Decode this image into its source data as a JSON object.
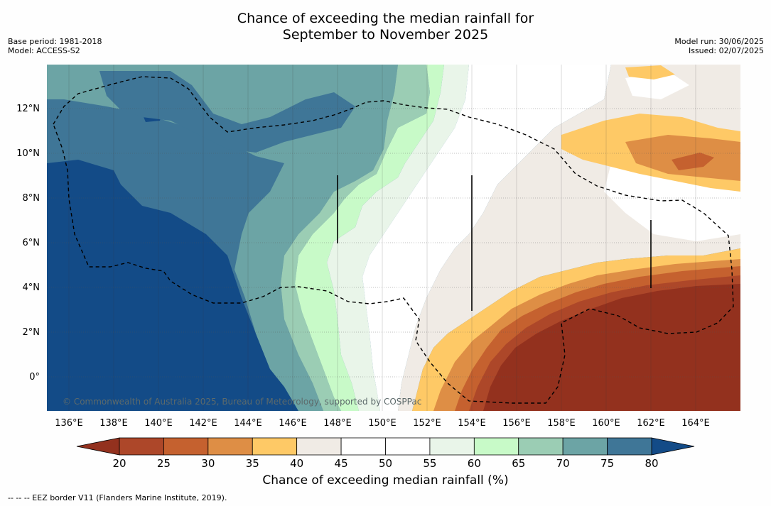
{
  "title": {
    "line1": "Chance of exceeding the median rainfall for",
    "line2": "September to November 2025"
  },
  "meta_left": {
    "base_period": "Base period: 1981-2018",
    "model": "Model: ACCESS-S2"
  },
  "meta_right": {
    "model_run": "Model run: 30/06/2025",
    "issued": "Issued: 02/07/2025"
  },
  "axes": {
    "x_ticks": [
      "136°E",
      "138°E",
      "140°E",
      "142°E",
      "144°E",
      "146°E",
      "148°E",
      "150°E",
      "152°E",
      "154°E",
      "156°E",
      "158°E",
      "160°E",
      "162°E",
      "164°E"
    ],
    "y_ticks": [
      "12°N",
      "10°N",
      "8°N",
      "6°N",
      "4°N",
      "2°N",
      "0°"
    ]
  },
  "copyright": "© Commonwealth of Australia 2025, Bureau of Meteorology, supported by COSPPac",
  "colorbar": {
    "title": "Chance of exceeding median rainfall (%)",
    "ticks": [
      "20",
      "25",
      "30",
      "35",
      "40",
      "45",
      "50",
      "55",
      "60",
      "65",
      "70",
      "75",
      "80"
    ],
    "under_color": "#93311e",
    "over_color": "#134b87",
    "colors": [
      "#ad4729",
      "#c5612f",
      "#de8e45",
      "#fec966",
      "#f0ebe5",
      "#ffffff",
      "#ffffff",
      "#e9f5e9",
      "#c8fac8",
      "#9bcdb4",
      "#6ca4a5",
      "#3f7697"
    ]
  },
  "footnote": "--  --  -- EEZ border V11 (Flanders Marine Institute, 2019)."
}
